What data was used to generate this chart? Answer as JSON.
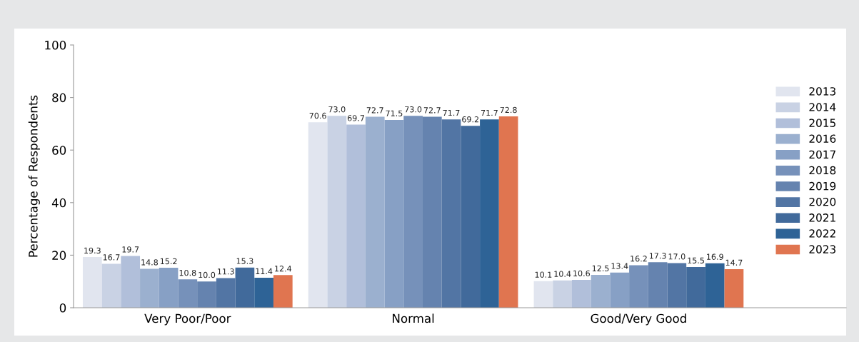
{
  "chart_data": {
    "type": "bar",
    "ylabel": "Percentage of Respondents",
    "categories": [
      "Very Poor/Poor",
      "Normal",
      "Good/Very Good"
    ],
    "series": [
      {
        "name": "2013",
        "color": "#e1e5ef",
        "values": [
          19.3,
          70.6,
          10.1
        ],
        "value_labels": [
          "19.3",
          "70.6",
          "10.1"
        ]
      },
      {
        "name": "2014",
        "color": "#c9d2e4",
        "values": [
          16.7,
          73.0,
          10.4
        ],
        "value_labels": [
          "16.7",
          "73.0",
          "10.4"
        ]
      },
      {
        "name": "2015",
        "color": "#b1bfda",
        "values": [
          19.7,
          69.7,
          10.6
        ],
        "value_labels": [
          "19.7",
          "69.7",
          "10.6"
        ]
      },
      {
        "name": "2016",
        "color": "#9bb0cf",
        "values": [
          14.8,
          72.7,
          12.5
        ],
        "value_labels": [
          "14.8",
          "72.7",
          "12.5"
        ]
      },
      {
        "name": "2017",
        "color": "#87a0c5",
        "values": [
          15.2,
          71.5,
          13.4
        ],
        "value_labels": [
          "15.2",
          "71.5",
          "13.4"
        ]
      },
      {
        "name": "2018",
        "color": "#7691ba",
        "values": [
          10.8,
          73.0,
          16.2
        ],
        "value_labels": [
          "10.8",
          "73.0",
          "16.2"
        ]
      },
      {
        "name": "2019",
        "color": "#6583af",
        "values": [
          10.0,
          72.7,
          17.3
        ],
        "value_labels": [
          "10.0",
          "72.7",
          "17.3"
        ]
      },
      {
        "name": "2020",
        "color": "#5275a4",
        "values": [
          11.3,
          71.7,
          17.0
        ],
        "value_labels": [
          "11.3",
          "71.7",
          "17.0"
        ]
      },
      {
        "name": "2021",
        "color": "#416a9b",
        "values": [
          15.3,
          69.2,
          15.5
        ],
        "value_labels": [
          "15.3",
          "69.2",
          "15.5"
        ]
      },
      {
        "name": "2022",
        "color": "#2e6396",
        "values": [
          11.4,
          71.7,
          16.9
        ],
        "value_labels": [
          "11.4",
          "71.7",
          "16.9"
        ]
      },
      {
        "name": "2023",
        "color": "#e07550",
        "values": [
          12.4,
          72.8,
          14.7
        ],
        "value_labels": [
          "12.4",
          "72.8",
          "14.7"
        ]
      }
    ],
    "ylim": [
      0,
      100
    ],
    "yticks": [
      0,
      20,
      40,
      60,
      80,
      100
    ],
    "grid": false,
    "legend": "right"
  }
}
